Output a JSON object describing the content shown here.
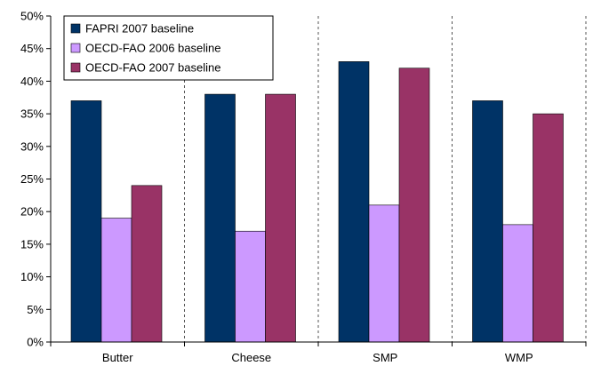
{
  "chart_data": {
    "type": "bar",
    "categories": [
      "Butter",
      "Cheese",
      "SMP",
      "WMP"
    ],
    "series": [
      {
        "name": "FAPRI 2007 baseline",
        "color": "#003366",
        "values": [
          37,
          38,
          43,
          37
        ]
      },
      {
        "name": "OECD-FAO 2006 baseline",
        "color": "#CC99FF",
        "values": [
          19,
          17,
          21,
          18
        ]
      },
      {
        "name": "OECD-FAO 2007 baseline",
        "color": "#993366",
        "values": [
          24,
          38,
          42,
          35
        ]
      }
    ],
    "y_ticks": [
      "0%",
      "5%",
      "10%",
      "15%",
      "20%",
      "25%",
      "30%",
      "35%",
      "40%",
      "45%",
      "50%"
    ],
    "ylim": [
      0,
      50
    ],
    "y_step": 5,
    "legend_position": "top-left",
    "category_separators": "dashed",
    "grid": false
  }
}
